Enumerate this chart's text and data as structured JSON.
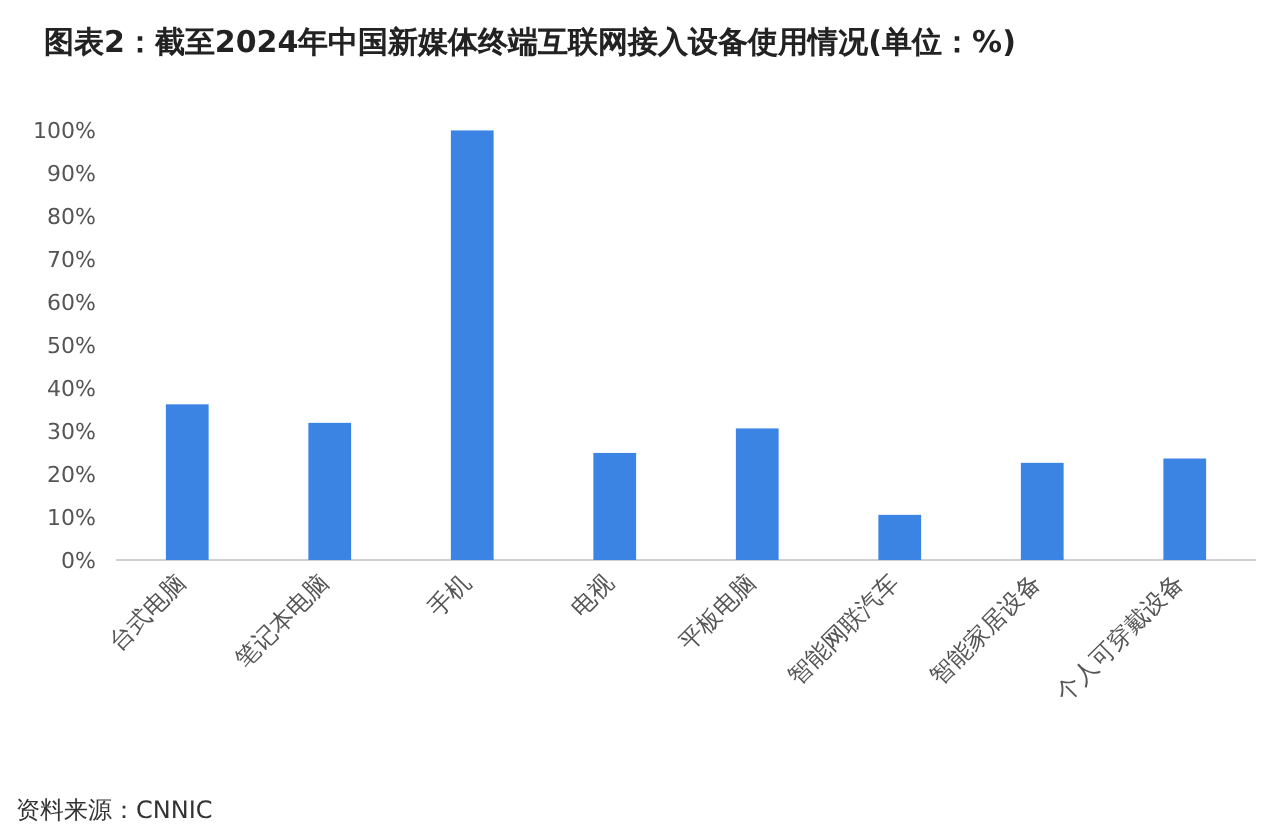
{
  "chart_data": {
    "type": "bar",
    "title": "图表2：截至2024年中国新媒体终端互联网接入设备使用情况(单位：%)",
    "categories": [
      "台式电脑",
      "笔记本电脑",
      "手机",
      "电视",
      "平板电脑",
      "智能网联汽车",
      "智能家居设备",
      "个人可穿戴设备"
    ],
    "values": [
      36.2,
      31.9,
      99.9,
      24.9,
      30.6,
      10.5,
      22.6,
      23.6
    ],
    "color": "#3b84e3",
    "ylim": [
      0,
      100
    ],
    "yticks": [
      {
        "value": 0,
        "label": "0%"
      },
      {
        "value": 10,
        "label": "10%"
      },
      {
        "value": 20,
        "label": "20%"
      },
      {
        "value": 30,
        "label": "30%"
      },
      {
        "value": 40,
        "label": "40%"
      },
      {
        "value": 50,
        "label": "50%"
      },
      {
        "value": 60,
        "label": "60%"
      },
      {
        "value": 70,
        "label": "70%"
      },
      {
        "value": 80,
        "label": "80%"
      },
      {
        "value": 90,
        "label": "90%"
      },
      {
        "value": 100,
        "label": "100%"
      }
    ],
    "grid": false,
    "legend": false,
    "annotations": [
      "资料来源：CNNIC"
    ]
  }
}
